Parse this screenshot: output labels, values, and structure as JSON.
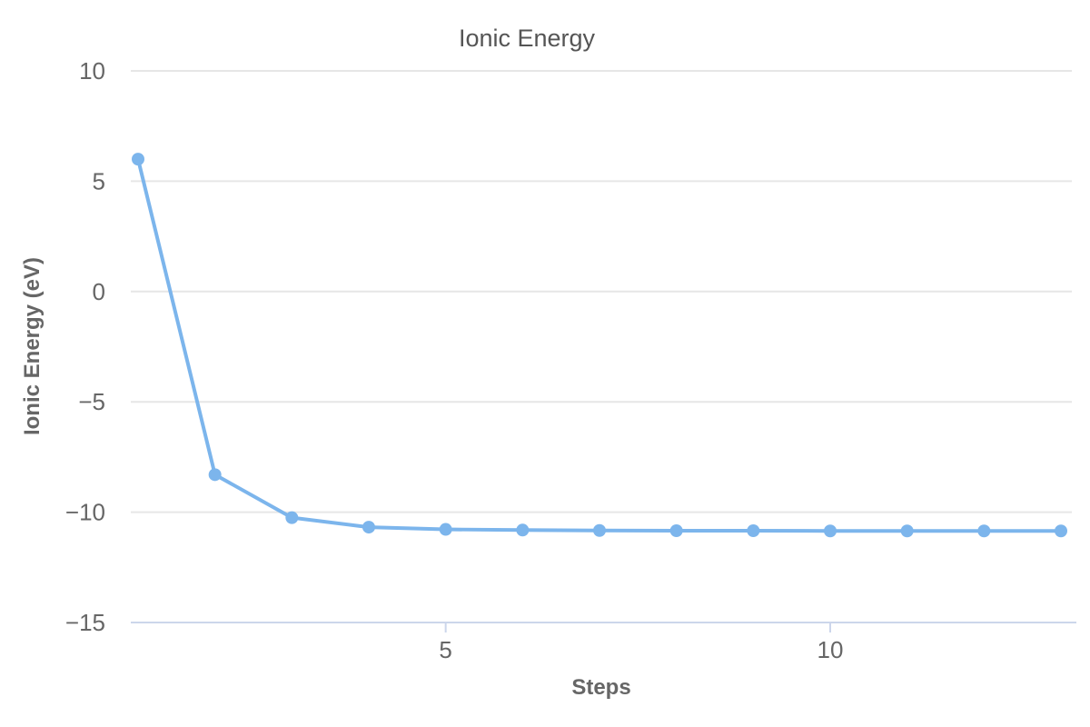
{
  "chart_data": {
    "type": "line",
    "title": "Ionic Energy",
    "xlabel": "Steps",
    "ylabel": "Ionic Energy (eV)",
    "x": [
      1,
      2,
      3,
      4,
      5,
      6,
      7,
      8,
      9,
      10,
      11,
      12,
      13
    ],
    "series": [
      {
        "name": "Ionic Energy",
        "values": [
          6.0,
          -8.3,
          -10.25,
          -10.68,
          -10.78,
          -10.81,
          -10.83,
          -10.84,
          -10.84,
          -10.85,
          -10.85,
          -10.85,
          -10.85
        ]
      }
    ],
    "ylim": [
      -15,
      10
    ],
    "yticks": [
      10,
      5,
      0,
      -5,
      -10,
      -15
    ],
    "xticks": [
      5,
      10
    ],
    "grid": true,
    "legend": "none",
    "colors": {
      "series": "#7cb5ec",
      "grid": "#e6e6e6",
      "axis_line": "#ccd6eb",
      "title_text": "#555555",
      "axis_text": "#666666",
      "background": "#ffffff"
    }
  }
}
